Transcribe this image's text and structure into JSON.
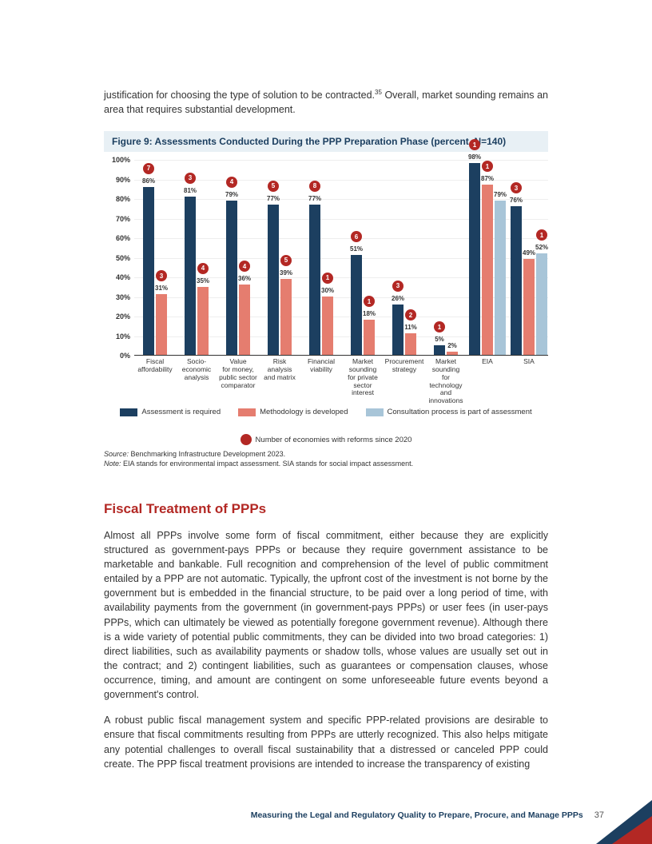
{
  "colors": {
    "navy": "#1c3f60",
    "coral": "#e57d6f",
    "lightblue": "#a8c5d8",
    "badge": "#b32824",
    "figureTitle": "#1c3f60",
    "figureBg": "#e8f0f5",
    "heading": "#b32824",
    "footerText": "#1c3f60"
  },
  "intro": {
    "textBefore": "justification for choosing the type of solution to be contracted.",
    "sup": "35",
    "textAfter": " Overall, market sounding remains an area that requires substantial development."
  },
  "figure": {
    "title": "Figure 9: Assessments Conducted During the PPP Preparation Phase (percent, N=140)",
    "yTicks": [
      "0%",
      "10%",
      "20%",
      "30%",
      "40%",
      "50%",
      "60%",
      "70%",
      "80%",
      "90%",
      "100%"
    ],
    "groups": [
      {
        "label": "Fiscal\naffordability",
        "bars": [
          {
            "v": 86,
            "c": "navy",
            "reform": 7
          },
          {
            "v": 31,
            "c": "coral",
            "reform": 3
          }
        ]
      },
      {
        "label": "Socio-\neconomic\nanalysis",
        "bars": [
          {
            "v": 81,
            "c": "navy",
            "reform": 3
          },
          {
            "v": 35,
            "c": "coral",
            "reform": 4
          }
        ]
      },
      {
        "label": "Value\nfor money,\npublic sector\ncomparator",
        "bars": [
          {
            "v": 79,
            "c": "navy",
            "reform": 4
          },
          {
            "v": 36,
            "c": "coral",
            "reform": 4
          }
        ]
      },
      {
        "label": "Risk\nanalysis\nand matrix",
        "bars": [
          {
            "v": 77,
            "c": "navy",
            "reform": 5
          },
          {
            "v": 39,
            "c": "coral",
            "reform": 5
          }
        ]
      },
      {
        "label": "Financial\nviability",
        "bars": [
          {
            "v": 77,
            "c": "navy",
            "reform": 8
          },
          {
            "v": 30,
            "c": "coral",
            "reform": 1
          }
        ]
      },
      {
        "label": "Market\nsounding\nfor private\nsector interest",
        "bars": [
          {
            "v": 51,
            "c": "navy",
            "reform": 6
          },
          {
            "v": 18,
            "c": "coral",
            "reform": 1
          }
        ]
      },
      {
        "label": "Procurement\nstrategy",
        "bars": [
          {
            "v": 26,
            "c": "navy",
            "reform": 3
          },
          {
            "v": 11,
            "c": "coral",
            "reform": 2
          }
        ]
      },
      {
        "label": "Market\nsounding\nfor technology\nand innovations",
        "bars": [
          {
            "v": 5,
            "c": "navy",
            "reform": 1
          },
          {
            "v": 2,
            "c": "coral"
          }
        ]
      },
      {
        "label": "EIA",
        "bars": [
          {
            "v": 98,
            "c": "navy",
            "reform": 1
          },
          {
            "v": 87,
            "c": "coral",
            "reform": 1
          },
          {
            "v": 79,
            "c": "lightblue"
          }
        ]
      },
      {
        "label": "SIA",
        "bars": [
          {
            "v": 76,
            "c": "navy",
            "reform": 3
          },
          {
            "v": 49,
            "c": "coral"
          },
          {
            "v": 52,
            "c": "lightblue",
            "reform": 1
          }
        ]
      }
    ],
    "legend": [
      {
        "type": "swatch",
        "color": "navy",
        "label": "Assessment is required"
      },
      {
        "type": "swatch",
        "color": "coral",
        "label": "Methodology is developed"
      },
      {
        "type": "swatch",
        "color": "lightblue",
        "label": "Consultation process is part of assessment"
      },
      {
        "type": "badge",
        "color": "badge",
        "label": "Number of economies with reforms since 2020"
      }
    ],
    "source": "Source:",
    "sourceText": " Benchmarking Infrastructure Development 2023.",
    "note": "Note:",
    "noteText": " EIA stands for environmental impact assessment. SIA stands for social impact assessment."
  },
  "section": {
    "heading": "Fiscal Treatment of PPPs",
    "p1": "Almost all PPPs involve some form of fiscal commitment, either because they are explicitly structured as government-pays PPPs or because they require government assistance to be marketable and bankable. Full recognition and comprehension of the level of public commitment entailed by a PPP are not automatic. Typically, the upfront cost of the investment is not borne by the government but is embedded in the financial structure, to be paid over a long period of time, with availability payments from the government (in government-pays PPPs) or user fees (in user-pays PPPs, which can ultimately be viewed as potentially foregone government revenue). Although there is a wide variety of potential public commitments, they can be divided into two broad categories: 1) direct liabilities, such as availability payments or shadow tolls, whose values are usually set out in the contract; and 2) contingent liabilities, such as guarantees or compensation clauses, whose occurrence, timing, and amount are contingent on some unforeseeable future events beyond a government's control.",
    "p2": "A robust public fiscal management system and specific PPP-related provisions are desirable to ensure that fiscal commitments resulting from PPPs are utterly recognized. This also helps mitigate any potential challenges to overall fiscal sustainability that a distressed or canceled PPP could create. The PPP fiscal treatment provisions are intended to increase the transparency of existing"
  },
  "footer": {
    "text": "Measuring the Legal and Regulatory Quality to Prepare, Procure, and Manage PPPs",
    "page": "37"
  }
}
